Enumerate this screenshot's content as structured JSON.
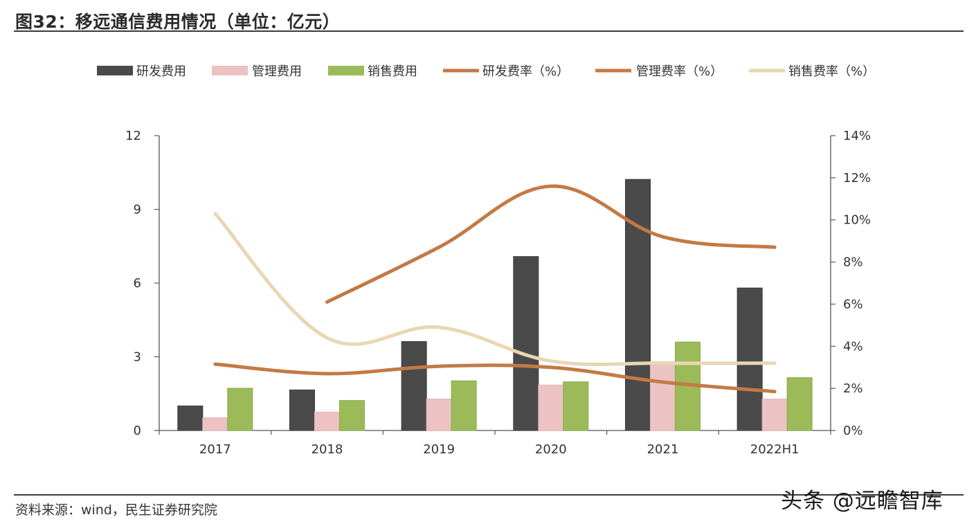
{
  "header": {
    "title": "图32：移远通信费用情况（单位：亿元）"
  },
  "footer": {
    "source": "资料来源：wind，民生证券研究院",
    "watermark": "头条 @远瞻智库"
  },
  "colors": {
    "rd_bar": "#4a4a4a",
    "admin_bar": "#ecc2c3",
    "sales_bar": "#9bbb59",
    "rd_rate": "#c27a45",
    "admin_rate": "#c27a45",
    "sales_rate": "#e8d7b3"
  },
  "chart_data": {
    "type": "bar",
    "categories": [
      "2017",
      "2018",
      "2019",
      "2020",
      "2021",
      "2022H1"
    ],
    "y_left": {
      "ticks": [
        "0",
        "3",
        "6",
        "9",
        "12"
      ],
      "ylim": [
        0,
        12
      ]
    },
    "y_right": {
      "ticks": [
        "0%",
        "2%",
        "4%",
        "6%",
        "8%",
        "10%",
        "12%",
        "14%"
      ],
      "ylim": [
        0,
        14
      ]
    },
    "bar_series": [
      {
        "name": "研发费用",
        "values": [
          1.0,
          1.65,
          3.62,
          7.08,
          10.22,
          5.8
        ]
      },
      {
        "name": "管理费用",
        "values": [
          0.52,
          0.75,
          1.28,
          1.85,
          2.8,
          1.28
        ]
      },
      {
        "name": "销售费用",
        "values": [
          1.72,
          1.22,
          2.02,
          1.98,
          3.6,
          2.15
        ]
      }
    ],
    "line_series": [
      {
        "name": "研发费率（%）",
        "values": [
          null,
          6.1,
          8.7,
          11.6,
          9.2,
          8.7
        ]
      },
      {
        "name": "管理费率（%）",
        "values": [
          3.15,
          2.7,
          3.05,
          3.0,
          2.3,
          1.85
        ]
      },
      {
        "name": "销售费率（%）",
        "values": [
          10.3,
          4.4,
          4.9,
          3.3,
          3.2,
          3.2
        ]
      }
    ],
    "legend_position": "top"
  }
}
